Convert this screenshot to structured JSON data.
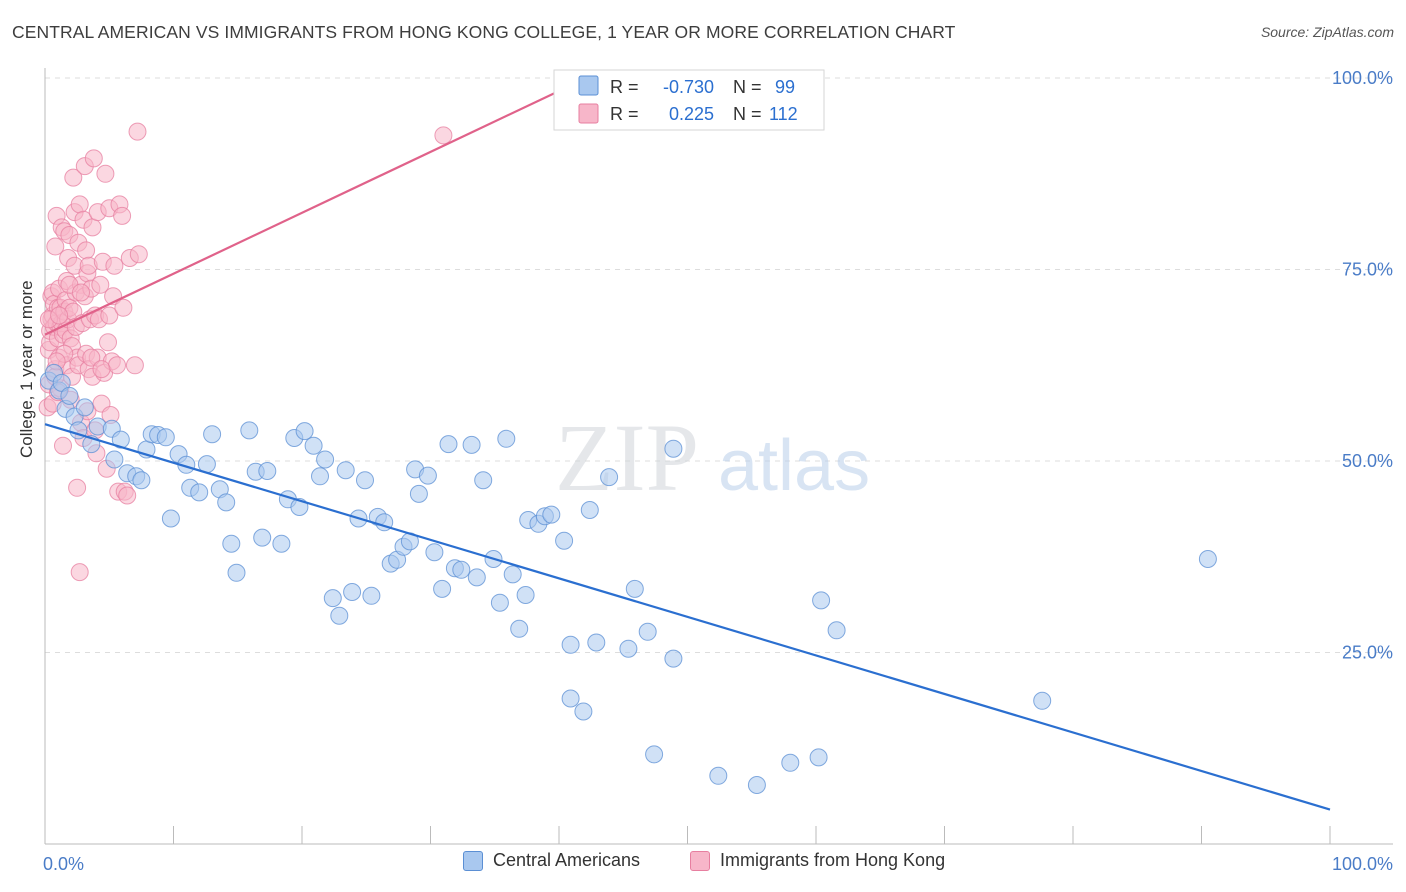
{
  "title": "CENTRAL AMERICAN VS IMMIGRANTS FROM HONG KONG COLLEGE, 1 YEAR OR MORE CORRELATION CHART",
  "source": "Source: ZipAtlas.com",
  "watermark": {
    "zip": "ZIP",
    "atlas": "atlas"
  },
  "colors": {
    "blue_fill": "#a9c8ef",
    "blue_stroke": "#5b8fd4",
    "blue_line": "#2b6fd0",
    "pink_fill": "#f7b6c9",
    "pink_stroke": "#e77fa0",
    "pink_line": "#e0628a",
    "tick_label": "#4a7cc7",
    "grid": "#dddddd"
  },
  "legend_top": [
    {
      "r_label": "R =",
      "r_value": "-0.730",
      "n_label": "N =",
      "n_value": "99"
    },
    {
      "r_label": "R =",
      "r_value": "0.225",
      "n_label": "N =",
      "n_value": "112"
    }
  ],
  "legend_bottom": [
    "Central Americans",
    "Immigrants from Hong Kong"
  ],
  "chart_data": {
    "type": "scatter",
    "title": "CENTRAL AMERICAN VS IMMIGRANTS FROM HONG KONG COLLEGE, 1 YEAR OR MORE CORRELATION CHART",
    "xlabel": "",
    "ylabel": "College, 1 year or more",
    "xlim": [
      0,
      100
    ],
    "ylim": [
      0,
      100
    ],
    "x_tick_labels": [
      "0.0%",
      "100.0%"
    ],
    "y_tick_labels": [
      "25.0%",
      "50.0%",
      "75.0%",
      "100.0%"
    ],
    "y_ticks": [
      25,
      50,
      75,
      100
    ],
    "grid": true,
    "legend_position": "top-center",
    "series": [
      {
        "name": "Central Americans",
        "color": "#a9c8ef",
        "trend": {
          "x": [
            0,
            100
          ],
          "y": [
            54.8,
            4.5
          ]
        },
        "points": [
          [
            0.3,
            60.5
          ],
          [
            0.7,
            61.5
          ],
          [
            1.1,
            59.2
          ],
          [
            1.3,
            60.2
          ],
          [
            1.6,
            56.8
          ],
          [
            1.9,
            58.5
          ],
          [
            2.3,
            55.8
          ],
          [
            2.6,
            54.0
          ],
          [
            3.1,
            57.0
          ],
          [
            3.6,
            52.2
          ],
          [
            4.1,
            54.5
          ],
          [
            5.2,
            54.2
          ],
          [
            5.4,
            50.2
          ],
          [
            5.9,
            52.8
          ],
          [
            6.4,
            48.4
          ],
          [
            7.1,
            48.0
          ],
          [
            7.5,
            47.5
          ],
          [
            7.9,
            51.5
          ],
          [
            8.3,
            53.5
          ],
          [
            8.8,
            53.4
          ],
          [
            9.4,
            53.1
          ],
          [
            9.8,
            42.5
          ],
          [
            10.4,
            50.9
          ],
          [
            11.0,
            49.5
          ],
          [
            11.3,
            46.5
          ],
          [
            12.0,
            45.9
          ],
          [
            12.6,
            49.6
          ],
          [
            13.0,
            53.5
          ],
          [
            13.6,
            46.3
          ],
          [
            14.1,
            44.6
          ],
          [
            14.5,
            39.2
          ],
          [
            14.9,
            35.4
          ],
          [
            15.9,
            54.0
          ],
          [
            16.4,
            48.6
          ],
          [
            16.9,
            40.0
          ],
          [
            17.3,
            48.7
          ],
          [
            18.4,
            39.2
          ],
          [
            18.9,
            45.0
          ],
          [
            19.4,
            53.0
          ],
          [
            19.8,
            44.0
          ],
          [
            20.2,
            53.9
          ],
          [
            20.9,
            52.0
          ],
          [
            21.4,
            48.0
          ],
          [
            21.8,
            50.2
          ],
          [
            22.4,
            32.1
          ],
          [
            22.9,
            29.8
          ],
          [
            23.4,
            48.8
          ],
          [
            23.9,
            32.9
          ],
          [
            24.4,
            42.5
          ],
          [
            24.9,
            47.5
          ],
          [
            25.4,
            32.4
          ],
          [
            25.9,
            42.7
          ],
          [
            26.4,
            42.0
          ],
          [
            26.9,
            36.6
          ],
          [
            27.4,
            37.1
          ],
          [
            27.9,
            38.8
          ],
          [
            28.4,
            39.5
          ],
          [
            28.8,
            48.9
          ],
          [
            29.1,
            45.7
          ],
          [
            29.8,
            48.1
          ],
          [
            30.3,
            38.1
          ],
          [
            30.9,
            33.3
          ],
          [
            31.4,
            52.2
          ],
          [
            31.9,
            36.0
          ],
          [
            32.4,
            35.8
          ],
          [
            33.2,
            52.1
          ],
          [
            33.6,
            34.8
          ],
          [
            34.1,
            47.5
          ],
          [
            34.9,
            37.2
          ],
          [
            35.4,
            31.5
          ],
          [
            35.9,
            52.9
          ],
          [
            36.4,
            35.2
          ],
          [
            36.9,
            28.1
          ],
          [
            37.4,
            32.5
          ],
          [
            37.6,
            42.3
          ],
          [
            38.4,
            41.8
          ],
          [
            38.9,
            42.8
          ],
          [
            39.4,
            43.0
          ],
          [
            40.4,
            39.6
          ],
          [
            40.9,
            26.0
          ],
          [
            40.9,
            19.0
          ],
          [
            41.9,
            17.3
          ],
          [
            42.4,
            43.6
          ],
          [
            42.9,
            26.3
          ],
          [
            43.9,
            47.9
          ],
          [
            45.4,
            25.5
          ],
          [
            45.9,
            33.3
          ],
          [
            46.9,
            27.7
          ],
          [
            47.4,
            11.7
          ],
          [
            48.9,
            24.2
          ],
          [
            48.9,
            51.6
          ],
          [
            52.4,
            8.9
          ],
          [
            55.4,
            7.7
          ],
          [
            58.0,
            10.6
          ],
          [
            60.2,
            11.3
          ],
          [
            60.4,
            31.8
          ],
          [
            61.6,
            27.9
          ],
          [
            77.6,
            18.7
          ],
          [
            90.5,
            37.2
          ]
        ]
      },
      {
        "name": "Immigrants from Hong Kong",
        "color": "#f7b6c9",
        "trend": {
          "x": [
            0,
            40.5
          ],
          "y": [
            66.5,
            98.7
          ]
        },
        "points": [
          [
            0.2,
            57.0
          ],
          [
            0.3,
            60.0
          ],
          [
            0.3,
            64.5
          ],
          [
            0.4,
            65.5
          ],
          [
            0.4,
            67.0
          ],
          [
            0.5,
            68.5
          ],
          [
            0.5,
            71.5
          ],
          [
            0.6,
            69.0
          ],
          [
            0.6,
            72.0
          ],
          [
            0.7,
            67.5
          ],
          [
            0.7,
            70.5
          ],
          [
            0.8,
            78.0
          ],
          [
            0.8,
            62.0
          ],
          [
            0.9,
            68.0
          ],
          [
            0.9,
            82.0
          ],
          [
            1.0,
            66.0
          ],
          [
            1.0,
            70.0
          ],
          [
            1.1,
            72.5
          ],
          [
            1.1,
            63.5
          ],
          [
            1.2,
            67.5
          ],
          [
            1.2,
            70.0
          ],
          [
            1.2,
            59.5
          ],
          [
            1.3,
            80.5
          ],
          [
            1.3,
            68.0
          ],
          [
            1.4,
            66.5
          ],
          [
            1.4,
            52.0
          ],
          [
            1.5,
            69.5
          ],
          [
            1.5,
            80.0
          ],
          [
            1.6,
            67.0
          ],
          [
            1.6,
            71.0
          ],
          [
            1.7,
            73.5
          ],
          [
            1.7,
            62.5
          ],
          [
            1.8,
            76.5
          ],
          [
            1.8,
            68.5
          ],
          [
            1.9,
            70.0
          ],
          [
            1.9,
            79.5
          ],
          [
            2.0,
            58.0
          ],
          [
            2.0,
            66.0
          ],
          [
            2.1,
            61.0
          ],
          [
            2.1,
            65.0
          ],
          [
            2.2,
            69.5
          ],
          [
            2.2,
            87.0
          ],
          [
            2.3,
            75.5
          ],
          [
            2.3,
            82.5
          ],
          [
            2.4,
            67.5
          ],
          [
            2.4,
            72.0
          ],
          [
            2.5,
            63.5
          ],
          [
            2.5,
            46.5
          ],
          [
            2.6,
            78.5
          ],
          [
            2.6,
            62.5
          ],
          [
            2.7,
            83.5
          ],
          [
            2.8,
            73.0
          ],
          [
            2.8,
            55.0
          ],
          [
            2.9,
            68.0
          ],
          [
            3.0,
            81.5
          ],
          [
            3.0,
            53.0
          ],
          [
            3.1,
            71.5
          ],
          [
            3.1,
            88.5
          ],
          [
            3.2,
            64.0
          ],
          [
            3.2,
            77.5
          ],
          [
            3.3,
            56.5
          ],
          [
            3.3,
            74.5
          ],
          [
            3.4,
            62.0
          ],
          [
            3.4,
            75.5
          ],
          [
            3.5,
            68.5
          ],
          [
            3.6,
            72.5
          ],
          [
            3.7,
            61.0
          ],
          [
            3.7,
            80.5
          ],
          [
            3.8,
            89.5
          ],
          [
            3.9,
            69.0
          ],
          [
            3.9,
            54.0
          ],
          [
            4.0,
            51.0
          ],
          [
            4.1,
            63.5
          ],
          [
            4.1,
            82.5
          ],
          [
            4.2,
            68.5
          ],
          [
            4.3,
            73.0
          ],
          [
            4.4,
            57.5
          ],
          [
            4.5,
            76.0
          ],
          [
            4.6,
            61.5
          ],
          [
            4.7,
            87.5
          ],
          [
            4.8,
            49.0
          ],
          [
            4.9,
            65.5
          ],
          [
            5.0,
            83.0
          ],
          [
            5.0,
            69.0
          ],
          [
            5.1,
            56.0
          ],
          [
            5.2,
            63.0
          ],
          [
            5.3,
            71.5
          ],
          [
            5.4,
            75.5
          ],
          [
            5.6,
            62.5
          ],
          [
            5.7,
            46.0
          ],
          [
            5.8,
            83.5
          ],
          [
            6.0,
            82.0
          ],
          [
            6.1,
            70.0
          ],
          [
            6.2,
            46.0
          ],
          [
            6.4,
            45.5
          ],
          [
            6.6,
            76.5
          ],
          [
            0.6,
            57.5
          ],
          [
            0.8,
            61.0
          ],
          [
            1.0,
            59.0
          ],
          [
            1.5,
            64.0
          ],
          [
            2.7,
            35.5
          ],
          [
            3.6,
            63.5
          ],
          [
            1.9,
            73.0
          ],
          [
            2.8,
            72.0
          ],
          [
            4.4,
            62.0
          ],
          [
            0.3,
            68.5
          ],
          [
            1.1,
            69.0
          ],
          [
            7.2,
            93.0
          ],
          [
            7.0,
            62.5
          ],
          [
            7.3,
            77.0
          ],
          [
            31.0,
            92.5
          ],
          [
            0.9,
            63.0
          ]
        ]
      }
    ]
  }
}
